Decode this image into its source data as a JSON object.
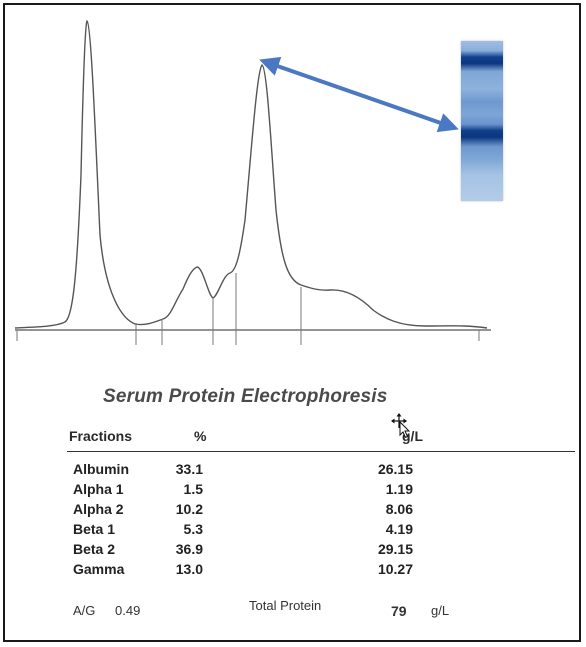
{
  "figure": {
    "title": "Serum Protein Electrophoresis",
    "colors": {
      "trace": "#555555",
      "arrow": "#4a78c2",
      "gel_band": "#0b3580",
      "gel_background": "#9ab9e0"
    }
  },
  "table": {
    "headers": {
      "fractions": "Fractions",
      "percent": "%",
      "gl": "g/L"
    },
    "rows": [
      {
        "name": "Albumin",
        "percent": "33.1",
        "gl": "26.15"
      },
      {
        "name": "Alpha 1",
        "percent": "1.5",
        "gl": "1.19"
      },
      {
        "name": "Alpha 2",
        "percent": "10.2",
        "gl": "8.06"
      },
      {
        "name": "Beta 1",
        "percent": "5.3",
        "gl": "4.19"
      },
      {
        "name": "Beta 2",
        "percent": "36.9",
        "gl": "29.15"
      },
      {
        "name": "Gamma",
        "percent": "13.0",
        "gl": "10.27"
      }
    ]
  },
  "footer": {
    "ag_label": "A/G",
    "ag_value": "0.49",
    "total_label": "Total Protein",
    "total_value": "79",
    "total_unit": "g/L"
  },
  "chart_data": {
    "type": "line",
    "title": "Serum Protein Electrophoresis",
    "xlabel": "",
    "ylabel": "",
    "grid": false,
    "fractions": [
      "Albumin",
      "Alpha 1",
      "Alpha 2",
      "Beta 1",
      "Beta 2",
      "Gamma"
    ],
    "percent": [
      33.1,
      1.5,
      10.2,
      5.3,
      36.9,
      13.0
    ],
    "gl": [
      26.15,
      1.19,
      8.06,
      4.19,
      29.15,
      10.27
    ],
    "annotation": "double-headed arrow linking the Beta 2 peak to the dark band on the gel strip"
  }
}
